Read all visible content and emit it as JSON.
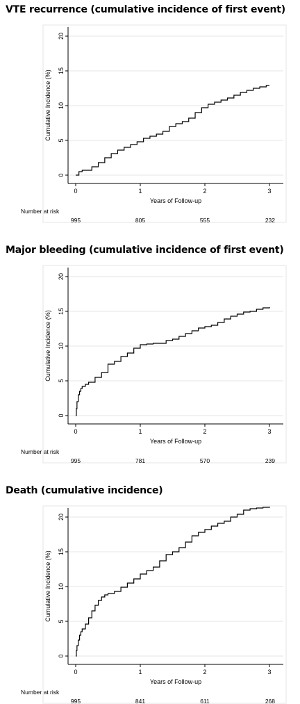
{
  "chart_data": [
    {
      "type": "line",
      "title": "VTE recurrence (cumulative incidence of first event)",
      "xlabel": "Years of Follow-up",
      "ylabel": "Cumulative Incidence (%)",
      "xlim": [
        0,
        3
      ],
      "ylim": [
        0,
        20
      ],
      "xticks": [
        "0",
        "1",
        "2",
        "3"
      ],
      "yticks": [
        "0",
        "5",
        "10",
        "15",
        "20"
      ],
      "grid": "horizontal",
      "risk_label": "Number at risk",
      "risk_values": [
        "995",
        "805",
        "555",
        "232"
      ],
      "series": [
        {
          "x": [
            0,
            0.05,
            0.1,
            0.25,
            0.35,
            0.45,
            0.55,
            0.65,
            0.75,
            0.85,
            0.95,
            1.05,
            1.15,
            1.25,
            1.35,
            1.45,
            1.55,
            1.65,
            1.75,
            1.85,
            1.95,
            2.05,
            2.15,
            2.25,
            2.35,
            2.45,
            2.55,
            2.65,
            2.75,
            2.85,
            2.95,
            3.0
          ],
          "y": [
            0,
            0.5,
            0.7,
            1.2,
            1.8,
            2.5,
            3.1,
            3.6,
            4.0,
            4.4,
            4.8,
            5.3,
            5.6,
            5.9,
            6.3,
            7.0,
            7.4,
            7.7,
            8.2,
            9.0,
            9.7,
            10.2,
            10.5,
            10.8,
            11.1,
            11.5,
            11.9,
            12.2,
            12.5,
            12.7,
            12.9,
            12.9
          ]
        }
      ]
    },
    {
      "type": "line",
      "title": "Major bleeding (cumulative incidence of first event)",
      "xlabel": "Years of Follow-up",
      "ylabel": "Cumulative Incidence (%)",
      "xlim": [
        0,
        3
      ],
      "ylim": [
        0,
        20
      ],
      "xticks": [
        "0",
        "1",
        "2",
        "3"
      ],
      "yticks": [
        "0",
        "5",
        "10",
        "15",
        "20"
      ],
      "grid": "horizontal",
      "risk_label": "Number at risk",
      "risk_values": [
        "995",
        "781",
        "570",
        "239"
      ],
      "series": [
        {
          "x": [
            0,
            0.01,
            0.02,
            0.04,
            0.06,
            0.08,
            0.1,
            0.15,
            0.2,
            0.3,
            0.4,
            0.5,
            0.6,
            0.7,
            0.8,
            0.9,
            1.0,
            1.1,
            1.2,
            1.4,
            1.5,
            1.6,
            1.7,
            1.8,
            1.9,
            2.0,
            2.1,
            2.2,
            2.3,
            2.4,
            2.5,
            2.6,
            2.7,
            2.8,
            2.9,
            3.0
          ],
          "y": [
            0,
            1.0,
            2.0,
            3.0,
            3.5,
            3.9,
            4.2,
            4.5,
            4.8,
            5.5,
            6.2,
            7.4,
            7.8,
            8.5,
            9.0,
            9.7,
            10.2,
            10.3,
            10.4,
            10.8,
            11.0,
            11.4,
            11.8,
            12.2,
            12.6,
            12.8,
            13.0,
            13.4,
            13.9,
            14.3,
            14.6,
            14.9,
            15.0,
            15.3,
            15.5,
            15.6
          ]
        }
      ]
    },
    {
      "type": "line",
      "title": "Death (cumulative incidence)",
      "xlabel": "Years of Follow-up",
      "ylabel": "Cumulative Incidence (%)",
      "xlim": [
        0,
        3
      ],
      "ylim": [
        0,
        20
      ],
      "xticks": [
        "0",
        "1",
        "2",
        "3"
      ],
      "yticks": [
        "0",
        "5",
        "10",
        "15",
        "20"
      ],
      "grid": "horizontal",
      "risk_label": "Number at risk",
      "risk_values": [
        "995",
        "841",
        "611",
        "268"
      ],
      "series": [
        {
          "x": [
            0,
            0.01,
            0.02,
            0.04,
            0.06,
            0.08,
            0.1,
            0.15,
            0.2,
            0.25,
            0.3,
            0.35,
            0.4,
            0.45,
            0.5,
            0.6,
            0.7,
            0.8,
            0.9,
            1.0,
            1.1,
            1.2,
            1.3,
            1.4,
            1.5,
            1.6,
            1.7,
            1.8,
            1.9,
            2.0,
            2.1,
            2.2,
            2.3,
            2.4,
            2.5,
            2.6,
            2.7,
            2.8,
            2.9,
            3.0
          ],
          "y": [
            0,
            0.8,
            1.5,
            2.3,
            3.0,
            3.5,
            3.9,
            4.6,
            5.5,
            6.5,
            7.3,
            8.0,
            8.5,
            8.8,
            9.0,
            9.3,
            9.9,
            10.5,
            11.1,
            11.8,
            12.3,
            12.8,
            13.7,
            14.6,
            15.0,
            15.6,
            16.4,
            17.3,
            17.8,
            18.2,
            18.7,
            19.1,
            19.4,
            20.0,
            20.4,
            21.0,
            21.2,
            21.3,
            21.4,
            21.5
          ]
        }
      ]
    }
  ]
}
